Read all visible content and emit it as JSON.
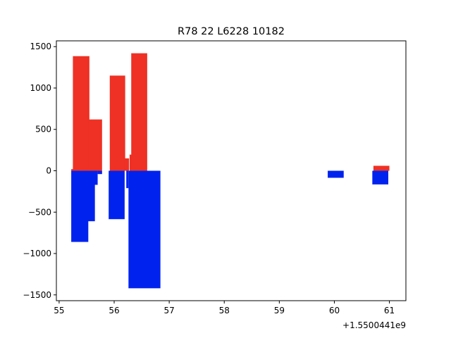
{
  "chart_data": {
    "type": "bar",
    "title": "R78 22 L6228 10182",
    "xlabel": "",
    "ylabel": "",
    "x_offset_label": "+1.5500441e9",
    "xlim": [
      54.95,
      61.3
    ],
    "ylim": [
      -1570,
      1570
    ],
    "grid": false,
    "x_ticks": [
      55,
      56,
      57,
      58,
      59,
      60,
      61
    ],
    "x_tick_labels": [
      "55",
      "56",
      "57",
      "58",
      "59",
      "60",
      "61"
    ],
    "y_ticks": [
      -1500,
      -1000,
      -500,
      0,
      500,
      1000,
      1500
    ],
    "y_tick_labels": [
      "−1500",
      "−1000",
      "−500",
      "0",
      "500",
      "1000",
      "1500"
    ],
    "series": [
      {
        "color": "#ee3124",
        "bars": [
          {
            "x0": 55.22,
            "x1": 55.26,
            "value": 20
          },
          {
            "x0": 55.25,
            "x1": 55.55,
            "value": 1385
          },
          {
            "x0": 55.53,
            "x1": 55.78,
            "value": 620
          },
          {
            "x0": 55.92,
            "x1": 56.2,
            "value": 1150
          },
          {
            "x0": 56.18,
            "x1": 56.27,
            "value": 150
          },
          {
            "x0": 56.28,
            "x1": 56.32,
            "value": 195
          },
          {
            "x0": 56.31,
            "x1": 56.6,
            "value": 1420
          },
          {
            "x0": 60.71,
            "x1": 61.0,
            "value": 60
          }
        ]
      },
      {
        "color": "#0022ee",
        "bars": [
          {
            "x0": 55.22,
            "x1": 55.53,
            "value": -860
          },
          {
            "x0": 55.52,
            "x1": 55.65,
            "value": -610
          },
          {
            "x0": 55.64,
            "x1": 55.7,
            "value": -170
          },
          {
            "x0": 55.7,
            "x1": 55.78,
            "value": -40
          },
          {
            "x0": 55.9,
            "x1": 56.19,
            "value": -585
          },
          {
            "x0": 56.22,
            "x1": 56.26,
            "value": -210
          },
          {
            "x0": 56.26,
            "x1": 56.84,
            "value": -1420
          },
          {
            "x0": 59.88,
            "x1": 60.17,
            "value": -85
          },
          {
            "x0": 60.69,
            "x1": 60.98,
            "value": -165
          }
        ]
      }
    ]
  }
}
